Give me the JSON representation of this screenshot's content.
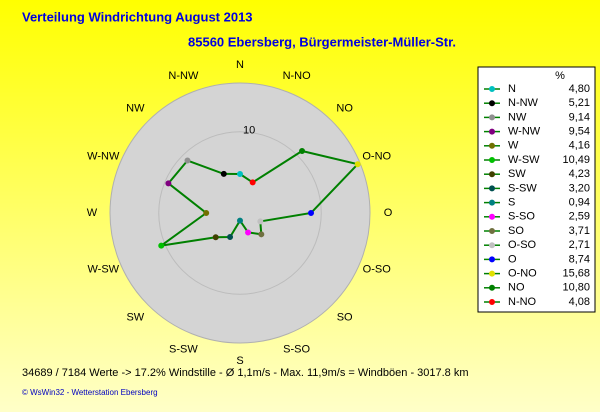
{
  "chart_data": {
    "type": "radar",
    "title": "Verteilung Windrichtung    August 2013",
    "subtitle": "85560 Ebersberg, Bürgermeister-Müller-Str.",
    "categories": [
      "N",
      "N-NW",
      "NW",
      "W-NW",
      "W",
      "W-SW",
      "SW",
      "S-SW",
      "S",
      "S-SO",
      "SO",
      "O-SO",
      "O",
      "O-NO",
      "NO",
      "N-NO"
    ],
    "direction": "counterclockwise",
    "values": [
      4.8,
      5.21,
      9.14,
      9.54,
      4.16,
      10.49,
      4.23,
      3.2,
      0.94,
      2.59,
      3.71,
      2.71,
      8.74,
      15.68,
      10.8,
      4.08
    ],
    "value_labels": [
      "4,80",
      "5,21",
      "9,14",
      "9,54",
      "4,16",
      "10,49",
      "4,23",
      "3,20",
      "0,94",
      "2,59",
      "3,71",
      "2,71",
      "8,74",
      "15,68",
      "10,80",
      "4,08"
    ],
    "line_color": "#008000",
    "colors": [
      "#00c0c0",
      "#000000",
      "#909090",
      "#800080",
      "#707000",
      "#00c000",
      "#404000",
      "#005050",
      "#008080",
      "#ff00ff",
      "#707040",
      "#c0c0c0",
      "#0000ff",
      "#e0e000",
      "#008000",
      "#ff0000"
    ],
    "rlim": [
      0,
      16
    ],
    "rticks": [
      10
    ],
    "legend_header": "%",
    "annotations": [
      "34689 / 7184 Werte  -> 17.2% Windstille   -   Ø 1,1m/s   -   Max. 11,9m/s = Windböen   -   3017.8 km",
      "© WsWin32  -  Wetterstation Ebersberg"
    ]
  }
}
